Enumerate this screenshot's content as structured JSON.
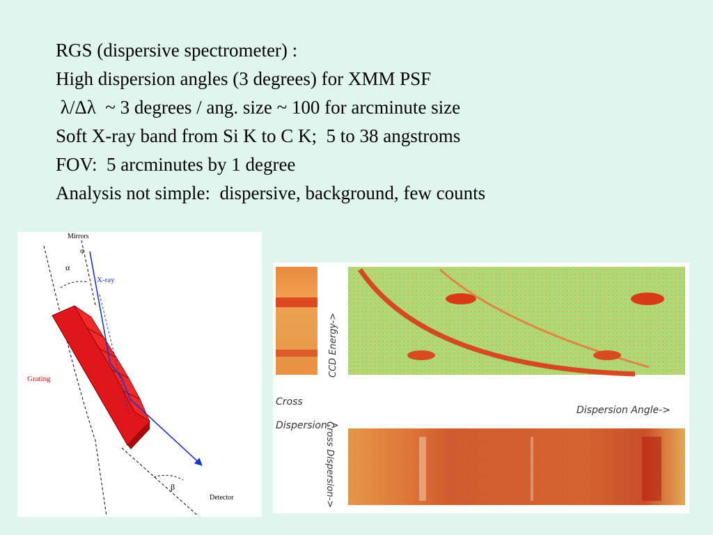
{
  "slide": {
    "lines": [
      "RGS (dispersive spectrometer) :",
      "High dispersion angles (3 degrees) for XMM PSF",
      " λ/Δλ  ~ 3 degrees / ang. size ~ 100 for arcminute size",
      "Soft X-ray band from Si K to C K;  5 to 38 angstroms",
      "FOV:  5 arcminutes by 1 degree",
      "Analysis not simple:  dispersive, background, few counts"
    ]
  },
  "grating_diagram": {
    "mirrors": "Mirrors",
    "phi": "φ",
    "alpha": "α",
    "xray": "X-ray",
    "grating": "Grating",
    "beta": "β",
    "detector": "Detector"
  },
  "spectrum_image": {
    "ccd_energy": "CCD Energy->",
    "cross": "Cross",
    "dispersion_arrow": "Dispersion->",
    "dispersion_angle": "Dispersion Angle->",
    "cross_dispersion_vertical": "Cross Dispersion->"
  },
  "colors": {
    "background": "#dff5ee",
    "grating_red": "#e0161b",
    "xray_blue": "#1a33cc",
    "spectrum_green": "#a8d878",
    "spectrum_red": "#d83a18",
    "spectrum_orange": "#f0a048"
  }
}
